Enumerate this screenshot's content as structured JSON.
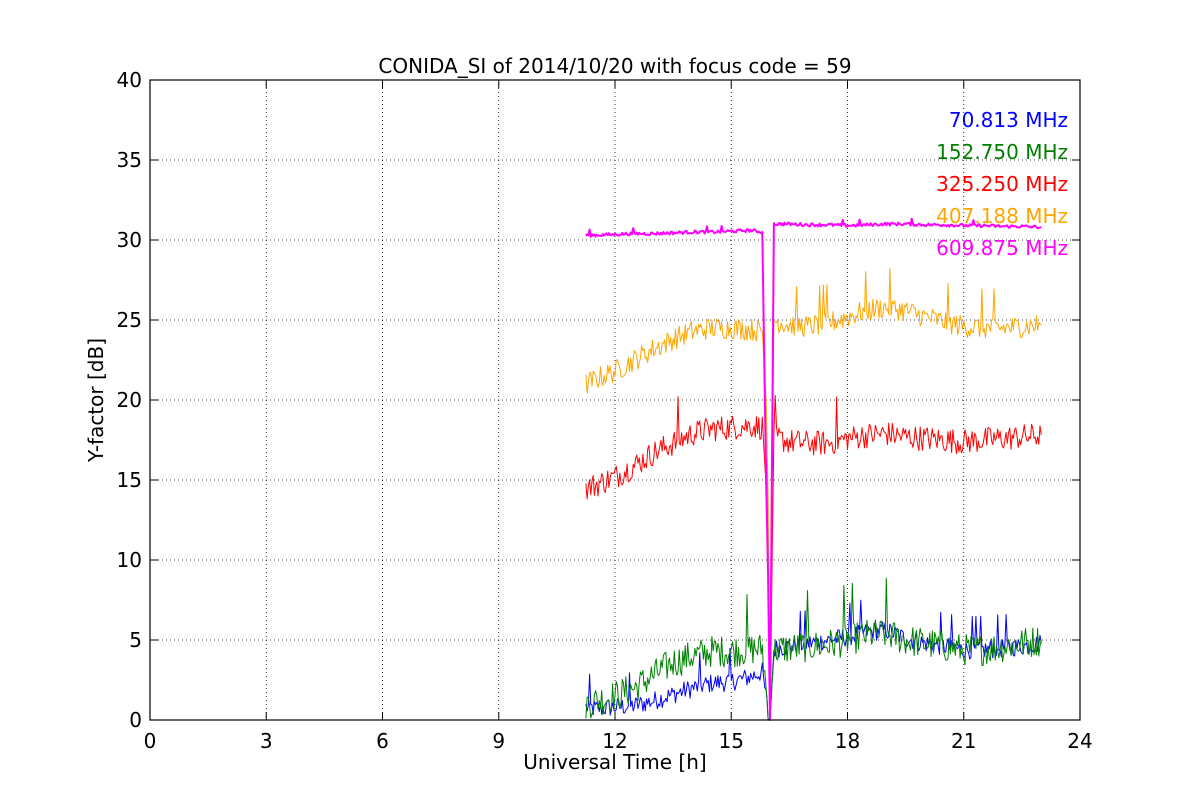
{
  "chart_data": {
    "type": "line",
    "title": "CONIDA_SI of 2014/10/20 with focus code = 59",
    "xlabel": "Universal Time [h]",
    "ylabel": "Y-factor [dB]",
    "xlim": [
      0,
      24
    ],
    "ylim": [
      0,
      40
    ],
    "xticks": [
      0,
      3,
      6,
      9,
      12,
      15,
      18,
      21,
      24
    ],
    "yticks": [
      0,
      5,
      10,
      15,
      20,
      25,
      30,
      35,
      40
    ],
    "grid": true,
    "legend_position": "top-right",
    "series": [
      {
        "name": "70.813 MHz",
        "color": "#0000ff",
        "noise": 0.6,
        "x": [
          11.25,
          11.5,
          12,
          12.5,
          13,
          13.5,
          14,
          14.5,
          15,
          15.5,
          15.8,
          15.9,
          15.95,
          16.0,
          16.1,
          16.2,
          16.5,
          17,
          17.5,
          18,
          18.5,
          19,
          19.5,
          20,
          20.5,
          21,
          21.5,
          22,
          22.5,
          23
        ],
        "y": [
          0.8,
          0.7,
          0.8,
          0.9,
          1.2,
          1.6,
          2.0,
          2.3,
          2.4,
          2.7,
          3.0,
          1.5,
          0.2,
          0.0,
          4.4,
          4.5,
          4.6,
          4.8,
          5.0,
          5.2,
          5.5,
          5.6,
          5.1,
          4.8,
          4.6,
          4.4,
          4.4,
          4.5,
          4.6,
          4.8
        ]
      },
      {
        "name": "152.750 MHz",
        "color": "#008000",
        "noise": 1.0,
        "x": [
          11.25,
          11.5,
          12,
          12.5,
          13,
          13.5,
          14,
          14.5,
          15,
          15.5,
          15.8,
          15.9,
          15.95,
          16.0,
          16.1,
          16.2,
          16.5,
          17,
          17.5,
          18,
          18.5,
          19,
          19.5,
          20,
          20.5,
          21,
          21.5,
          22,
          22.5,
          23
        ],
        "y": [
          1.0,
          1.2,
          1.5,
          2.0,
          2.8,
          3.6,
          4.0,
          4.3,
          4.3,
          4.4,
          4.5,
          2.0,
          0.3,
          0.0,
          4.3,
          4.4,
          4.5,
          4.6,
          4.7,
          5.0,
          5.3,
          5.4,
          5.0,
          4.8,
          4.6,
          4.4,
          4.4,
          4.6,
          4.8,
          5.0
        ]
      },
      {
        "name": "325.250 MHz",
        "color": "#ff0000",
        "noise": 0.8,
        "x": [
          11.25,
          11.5,
          12,
          12.5,
          13,
          13.5,
          14,
          14.5,
          15,
          15.5,
          15.8,
          15.9,
          15.95,
          16.0,
          16.1,
          16.2,
          16.5,
          17,
          17.5,
          18,
          18.5,
          19,
          19.5,
          20,
          20.5,
          21,
          21.5,
          22,
          22.5,
          23
        ],
        "y": [
          14.5,
          14.7,
          15.2,
          15.9,
          16.7,
          17.3,
          17.9,
          18.2,
          18.3,
          18.4,
          18.3,
          15.0,
          12.0,
          0.0,
          17.5,
          17.6,
          17.4,
          17.3,
          17.3,
          17.6,
          17.8,
          17.9,
          17.7,
          17.6,
          17.5,
          17.4,
          17.5,
          17.6,
          17.7,
          17.8
        ]
      },
      {
        "name": "407.188 MHz",
        "color": "#ffa500",
        "noise": 0.7,
        "x": [
          11.25,
          11.5,
          12,
          12.5,
          13,
          13.5,
          14,
          14.5,
          15,
          15.5,
          15.8,
          15.9,
          15.95,
          16.0,
          16.1,
          16.2,
          16.5,
          17,
          17.5,
          18,
          18.5,
          19,
          19.5,
          20,
          20.5,
          21,
          21.5,
          22,
          22.5,
          23
        ],
        "y": [
          21.0,
          21.3,
          21.8,
          22.5,
          23.2,
          23.8,
          24.3,
          24.5,
          24.5,
          24.4,
          24.3,
          20.0,
          14.0,
          0.0,
          25.0,
          24.9,
          24.7,
          24.6,
          24.8,
          25.2,
          25.6,
          25.8,
          25.6,
          25.2,
          24.9,
          24.6,
          24.5,
          24.5,
          24.6,
          24.7
        ]
      },
      {
        "name": "609.875 MHz",
        "color": "#ff00ff",
        "noise": 0.1,
        "x": [
          11.25,
          11.5,
          12,
          12.5,
          13,
          13.5,
          14,
          14.5,
          15,
          15.5,
          15.8,
          15.9,
          15.95,
          16.0,
          16.1,
          16.2,
          16.5,
          17,
          17.5,
          18,
          18.5,
          19,
          19.5,
          20,
          20.5,
          21,
          21.5,
          22,
          22.5,
          23
        ],
        "y": [
          30.3,
          30.3,
          30.35,
          30.4,
          30.4,
          30.45,
          30.5,
          30.5,
          30.55,
          30.6,
          30.5,
          15.0,
          9.0,
          0.0,
          31.0,
          31.0,
          31.0,
          30.95,
          30.95,
          30.9,
          30.95,
          31.0,
          31.0,
          30.95,
          30.95,
          30.9,
          30.9,
          30.85,
          30.85,
          30.8
        ]
      }
    ]
  }
}
